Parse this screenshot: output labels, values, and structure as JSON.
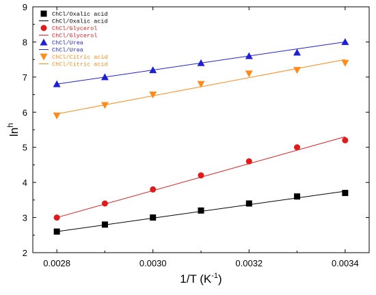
{
  "chart_data": {
    "type": "scatter",
    "xlabel_main": "1/T (K",
    "xlabel_sup": "-1",
    "xlabel_close": ")",
    "ylabel_main": "ln",
    "ylabel_sup": "h",
    "xlim": [
      0.00275,
      0.00345
    ],
    "ylim": [
      2,
      9
    ],
    "xticks": [
      0.0028,
      0.003,
      0.0032,
      0.0034
    ],
    "xtick_labels": [
      "0.0028",
      "0.0030",
      "0.0032",
      "0.0034"
    ],
    "yticks": [
      2,
      3,
      4,
      5,
      6,
      7,
      8,
      9
    ],
    "ytick_labels": [
      "2",
      "3",
      "4",
      "5",
      "6",
      "7",
      "8",
      "9"
    ],
    "grid": false,
    "legend_position": "top-left",
    "x": [
      0.0028,
      0.0029,
      0.003,
      0.0031,
      0.0032,
      0.0033,
      0.0034
    ],
    "series": [
      {
        "name": "ChCl/Oxalic acid",
        "fit_name": "ChCl/Oxalic acid",
        "marker": "square",
        "color": "#000000",
        "fit_color": "#000000",
        "values": [
          2.6,
          2.8,
          3.0,
          3.2,
          3.4,
          3.6,
          3.7
        ],
        "fit": [
          2.6,
          3.75
        ]
      },
      {
        "name": "ChCl/Glycerol",
        "fit_name": "ChCl/Glycerol",
        "marker": "circle",
        "color": "#e31a1c",
        "fit_color": "#e31a1c",
        "values": [
          3.0,
          3.4,
          3.8,
          4.2,
          4.6,
          5.0,
          5.2
        ],
        "fit": [
          3.0,
          5.3
        ]
      },
      {
        "name": "ChCl/Urea",
        "fit_name": "ChCl/Urea",
        "marker": "triangle-up",
        "color": "#1f1fd6",
        "fit_color": "#1f1fd6",
        "values": [
          6.8,
          7.0,
          7.2,
          7.4,
          7.6,
          7.7,
          8.0
        ],
        "fit": [
          6.8,
          8.0
        ]
      },
      {
        "name": "ChCl/Citric acid",
        "fit_name": "ChCl/Citric acid",
        "marker": "triangle-down",
        "color": "#ff8c1a",
        "fit_color": "#ff8c1a",
        "values": [
          5.9,
          6.2,
          6.5,
          6.8,
          7.1,
          7.2,
          7.4
        ],
        "fit": [
          5.95,
          7.5
        ]
      }
    ]
  }
}
